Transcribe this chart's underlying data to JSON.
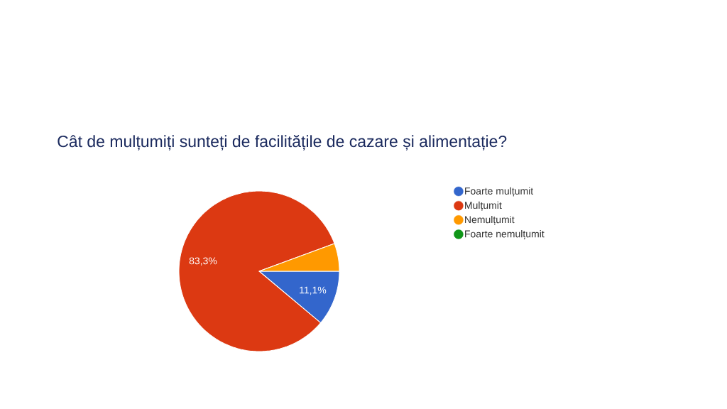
{
  "chart_data": {
    "type": "pie",
    "title": "Cât de mulțumiți sunteți de facilitățile de cazare și alimentație?",
    "categories": [
      "Foarte mulțumit",
      "Mulțumit",
      "Nemulțumit",
      "Foarte nemulțumit"
    ],
    "values": [
      11.1,
      83.3,
      5.6,
      0
    ],
    "colors": [
      "#3366cc",
      "#dc3912",
      "#ff9900",
      "#109618"
    ],
    "value_labels": [
      "11,1%",
      "83,3%",
      null,
      null
    ],
    "legend": "right"
  }
}
